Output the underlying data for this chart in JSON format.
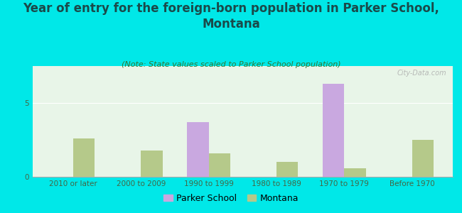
{
  "title": "Year of entry for the foreign-born population in Parker School,\nMontana",
  "subtitle": "(Note: State values scaled to Parker School population)",
  "categories": [
    "2010 or later",
    "2000 to 2009",
    "1990 to 1999",
    "1980 to 1989",
    "1970 to 1979",
    "Before 1970"
  ],
  "parker_school": [
    0,
    0,
    3.7,
    0,
    6.3,
    0
  ],
  "montana": [
    2.6,
    1.8,
    1.6,
    1.0,
    0.6,
    2.5
  ],
  "parker_color": "#c9a8e0",
  "montana_color": "#b5c98a",
  "background_color": "#00e8e8",
  "plot_bg_color": "#e8f5e8",
  "ylim": [
    0,
    7.5
  ],
  "yticks": [
    0,
    5
  ],
  "bar_width": 0.32,
  "title_fontsize": 12,
  "subtitle_fontsize": 8,
  "tick_fontsize": 7.5,
  "legend_fontsize": 9,
  "watermark": "City-Data.com"
}
